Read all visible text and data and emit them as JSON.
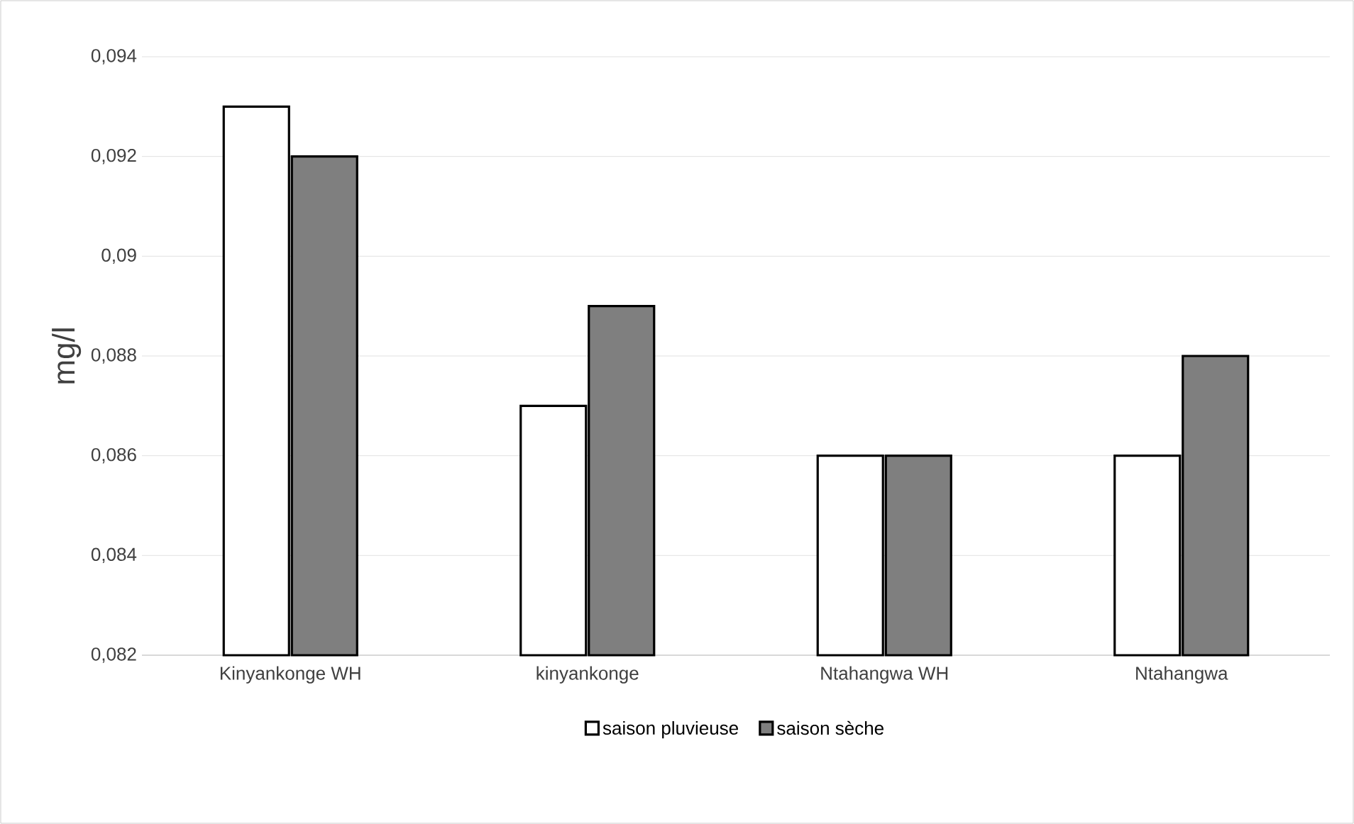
{
  "chart_data": {
    "type": "bar",
    "ylabel": "mg/l",
    "categories": [
      "Kinyankonge WH",
      "kinyankonge",
      "Ntahangwa WH",
      "Ntahangwa"
    ],
    "series": [
      {
        "name": "saison pluvieuse",
        "color": "#ffffff",
        "values": [
          0.093,
          0.087,
          0.086,
          0.086
        ]
      },
      {
        "name": "saison sèche",
        "color": "#7f7f7f",
        "values": [
          0.092,
          0.089,
          0.086,
          0.088
        ]
      }
    ],
    "ylim": [
      0.082,
      0.094
    ],
    "yticks": [
      {
        "value": 0.082,
        "label": "0,082"
      },
      {
        "value": 0.084,
        "label": "0,084"
      },
      {
        "value": 0.086,
        "label": "0,086"
      },
      {
        "value": 0.088,
        "label": "0,088"
      },
      {
        "value": 0.09,
        "label": "0,09"
      },
      {
        "value": 0.092,
        "label": "0,092"
      },
      {
        "value": 0.094,
        "label": "0,094"
      }
    ],
    "grid": "y",
    "legend": "bottom"
  }
}
